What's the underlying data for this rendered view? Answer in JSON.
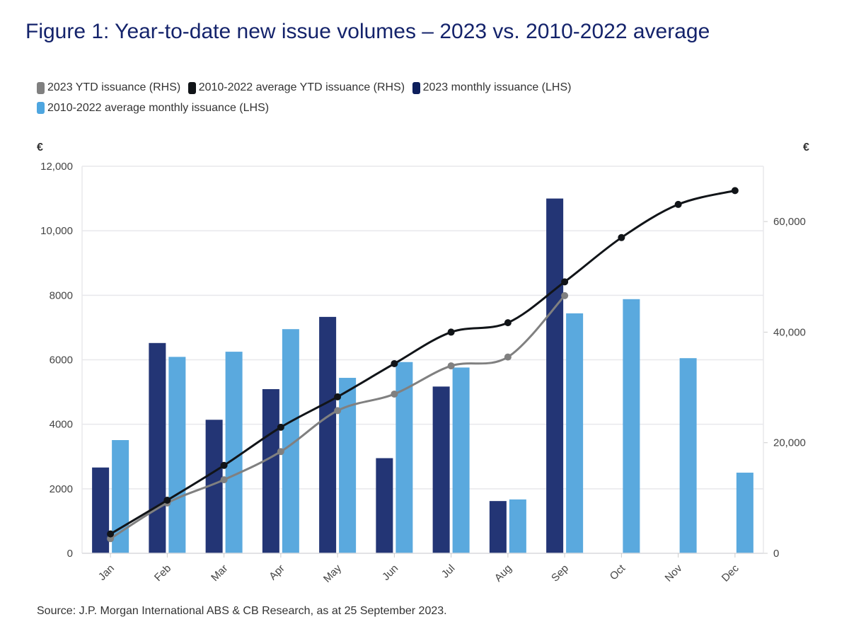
{
  "title": "Figure 1: Year-to-date new issue volumes – 2023 vs. 2010-2022 average",
  "source": "Source: J.P. Morgan International ABS & CB Research, as at 25 September 2023.",
  "chart_data": {
    "type": "bar+line",
    "title": "Figure 1: Year-to-date new issue volumes – 2023 vs. 2010-2022 average",
    "categories": [
      "Jan",
      "Feb",
      "Mar",
      "Apr",
      "May",
      "Jun",
      "Jul",
      "Aug",
      "Sep",
      "Oct",
      "Nov",
      "Dec"
    ],
    "left_axis": {
      "label": "€",
      "ylim": [
        0,
        12000
      ],
      "ticks": [
        "0",
        "2000",
        "4000",
        "6000",
        "8000",
        "10,000",
        "12,000"
      ],
      "tick_values": [
        0,
        2000,
        4000,
        6000,
        8000,
        10000,
        12000
      ]
    },
    "right_axis": {
      "label": "€",
      "ylim": [
        0,
        70000
      ],
      "ticks": [
        "0",
        "20,000",
        "40,000",
        "60,000"
      ],
      "tick_values": [
        0,
        20000,
        40000,
        60000
      ]
    },
    "grid": true,
    "legend_position": "top-left",
    "series": [
      {
        "name": "2023 YTD issuance (RHS)",
        "type": "line",
        "axis": "right",
        "color": "#808080",
        "values": [
          2650,
          9100,
          13300,
          18400,
          25800,
          28800,
          33900,
          35500,
          46600,
          null,
          null,
          null
        ]
      },
      {
        "name": "2010-2022 average YTD issuance (RHS)",
        "type": "line",
        "axis": "right",
        "color": "#111418",
        "values": [
          3500,
          9600,
          15900,
          22800,
          28300,
          34300,
          40000,
          41700,
          49100,
          57100,
          63100,
          65600
        ]
      },
      {
        "name": "2023 monthly issuance (LHS)",
        "type": "bar",
        "axis": "left",
        "color": "#233575",
        "values": [
          2660,
          6520,
          4140,
          5090,
          7330,
          2950,
          5170,
          1620,
          11000,
          null,
          null,
          null
        ]
      },
      {
        "name": "2010-2022 average monthly issuance (LHS)",
        "type": "bar",
        "axis": "left",
        "color": "#5aa9de",
        "values": [
          3510,
          6090,
          6250,
          6950,
          5440,
          5930,
          5760,
          1670,
          7440,
          7880,
          6050,
          2500
        ]
      }
    ]
  }
}
